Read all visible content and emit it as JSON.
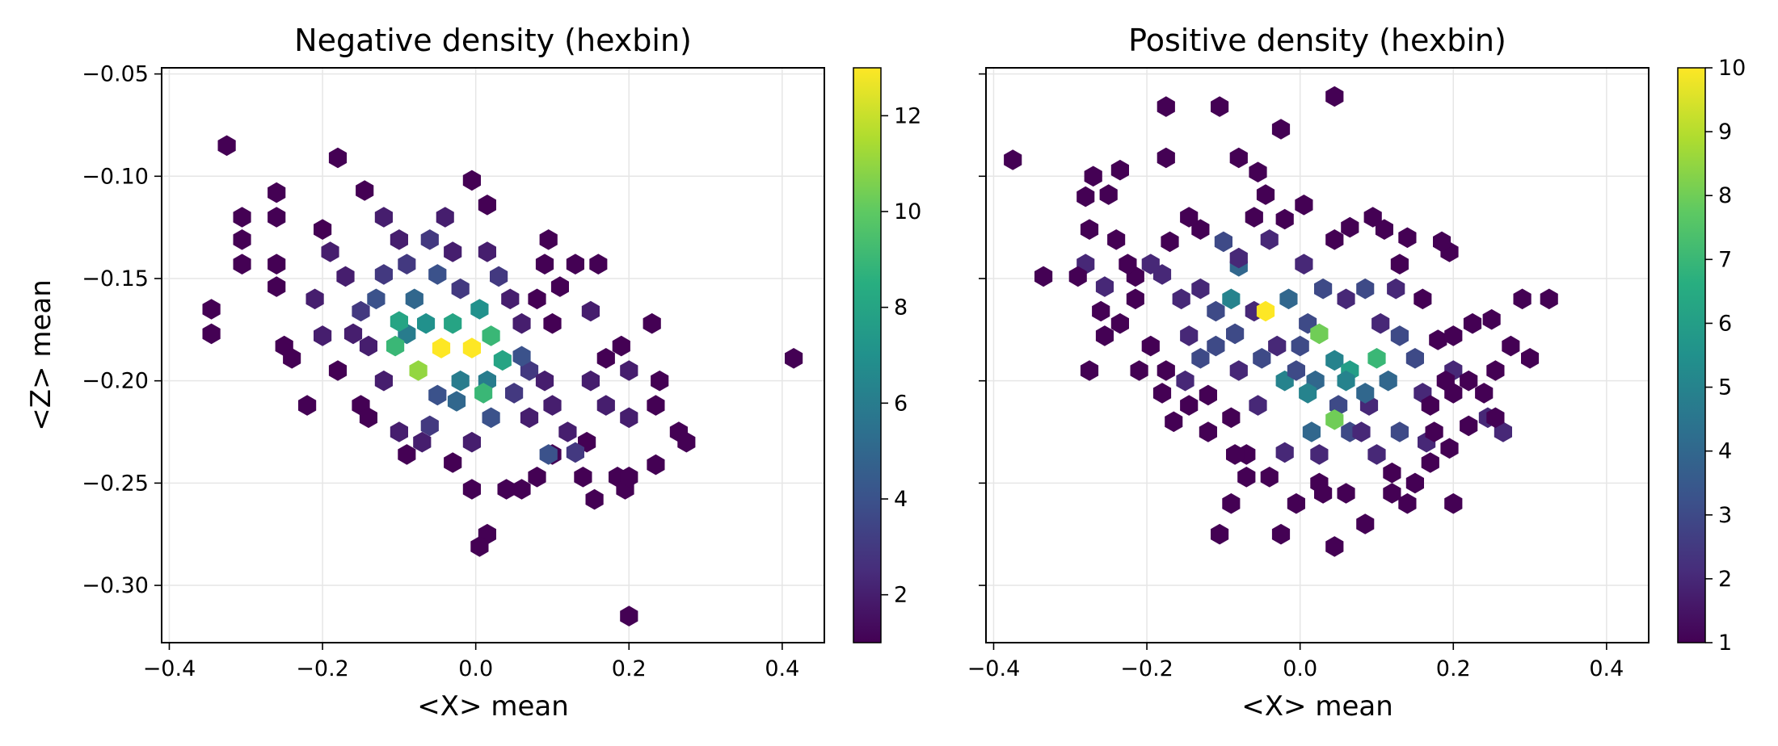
{
  "chart_data": [
    {
      "type": "heatmap",
      "subtype": "hexbin",
      "title": "Negative density (hexbin)",
      "xlabel": "<X> mean",
      "ylabel": "<Z> mean",
      "xlim": [
        -0.41,
        0.455
      ],
      "ylim": [
        -0.328,
        -0.047
      ],
      "xticks": [
        -0.4,
        -0.2,
        0.0,
        0.2,
        0.4
      ],
      "xtick_labels": [
        "−0.4",
        "−0.2",
        "0.0",
        "0.2",
        "0.4"
      ],
      "yticks": [
        -0.3,
        -0.25,
        -0.2,
        -0.15,
        -0.1,
        -0.05
      ],
      "ytick_labels": [
        "−0.30",
        "−0.25",
        "−0.20",
        "−0.15",
        "−0.10",
        "−0.05"
      ],
      "grid": true,
      "colormap": "viridis",
      "colorbar": {
        "min": 1,
        "max": 13,
        "ticks": [
          2,
          4,
          6,
          8,
          10,
          12
        ],
        "tick_labels": [
          "2",
          "4",
          "6",
          "8",
          "10",
          "12"
        ]
      },
      "bins": [
        [
          -0.325,
          -0.085,
          1
        ],
        [
          -0.18,
          -0.091,
          1
        ],
        [
          -0.305,
          -0.12,
          1
        ],
        [
          -0.305,
          -0.131,
          1
        ],
        [
          -0.305,
          -0.143,
          1
        ],
        [
          -0.345,
          -0.165,
          1
        ],
        [
          -0.345,
          -0.177,
          1
        ],
        [
          -0.26,
          -0.108,
          1
        ],
        [
          -0.26,
          -0.12,
          1
        ],
        [
          -0.26,
          -0.143,
          1
        ],
        [
          -0.26,
          -0.154,
          1
        ],
        [
          -0.25,
          -0.183,
          1
        ],
        [
          -0.24,
          -0.189,
          1
        ],
        [
          -0.22,
          -0.212,
          1
        ],
        [
          -0.2,
          -0.126,
          1
        ],
        [
          -0.19,
          -0.137,
          2
        ],
        [
          -0.17,
          -0.149,
          2
        ],
        [
          -0.21,
          -0.16,
          2
        ],
        [
          -0.15,
          -0.166,
          3
        ],
        [
          -0.16,
          -0.177,
          2
        ],
        [
          -0.14,
          -0.183,
          2
        ],
        [
          -0.145,
          -0.107,
          1
        ],
        [
          -0.12,
          -0.12,
          2
        ],
        [
          -0.1,
          -0.131,
          2
        ],
        [
          -0.09,
          -0.143,
          3
        ],
        [
          -0.08,
          -0.16,
          5
        ],
        [
          -0.065,
          -0.172,
          7
        ],
        [
          -0.09,
          -0.177,
          6
        ],
        [
          -0.1,
          -0.171,
          8
        ],
        [
          -0.105,
          -0.183,
          9
        ],
        [
          -0.075,
          -0.195,
          11
        ],
        [
          -0.045,
          -0.184,
          13
        ],
        [
          -0.005,
          -0.184,
          13
        ],
        [
          -0.03,
          -0.172,
          8
        ],
        [
          0.005,
          -0.165,
          7
        ],
        [
          0.02,
          -0.178,
          9
        ],
        [
          0.035,
          -0.19,
          8
        ],
        [
          0.015,
          -0.2,
          6
        ],
        [
          0.01,
          -0.206,
          9
        ],
        [
          -0.02,
          -0.2,
          6
        ],
        [
          -0.05,
          -0.207,
          4
        ],
        [
          -0.06,
          -0.222,
          3
        ],
        [
          -0.12,
          -0.2,
          2
        ],
        [
          -0.15,
          -0.212,
          1
        ],
        [
          -0.14,
          -0.218,
          1
        ],
        [
          -0.1,
          -0.225,
          2
        ],
        [
          -0.09,
          -0.236,
          1
        ],
        [
          -0.07,
          -0.23,
          2
        ],
        [
          -0.03,
          -0.24,
          1
        ],
        [
          -0.005,
          -0.23,
          2
        ],
        [
          0.02,
          -0.218,
          4
        ],
        [
          0.05,
          -0.206,
          3
        ],
        [
          0.07,
          -0.195,
          3
        ],
        [
          0.09,
          -0.2,
          2
        ],
        [
          0.1,
          -0.212,
          2
        ],
        [
          0.12,
          -0.225,
          2
        ],
        [
          0.145,
          -0.23,
          1
        ],
        [
          0.13,
          -0.235,
          3
        ],
        [
          0.1,
          -0.236,
          1
        ],
        [
          0.07,
          -0.218,
          2
        ],
        [
          0.045,
          -0.16,
          2
        ],
        [
          0.06,
          -0.172,
          2
        ],
        [
          0.08,
          -0.16,
          1
        ],
        [
          0.1,
          -0.172,
          1
        ],
        [
          0.11,
          -0.154,
          1
        ],
        [
          0.09,
          -0.143,
          1
        ],
        [
          0.095,
          -0.131,
          1
        ],
        [
          0.015,
          -0.137,
          2
        ],
        [
          -0.005,
          -0.102,
          1
        ],
        [
          0.015,
          -0.114,
          1
        ],
        [
          -0.04,
          -0.12,
          2
        ],
        [
          -0.06,
          -0.131,
          3
        ],
        [
          -0.03,
          -0.137,
          2
        ],
        [
          0.03,
          -0.149,
          3
        ],
        [
          0.13,
          -0.143,
          1
        ],
        [
          0.16,
          -0.143,
          1
        ],
        [
          0.15,
          -0.166,
          2
        ],
        [
          0.23,
          -0.172,
          1
        ],
        [
          0.19,
          -0.183,
          1
        ],
        [
          0.2,
          -0.195,
          2
        ],
        [
          0.17,
          -0.189,
          1
        ],
        [
          0.24,
          -0.2,
          1
        ],
        [
          0.235,
          -0.212,
          1
        ],
        [
          0.17,
          -0.212,
          2
        ],
        [
          0.2,
          -0.218,
          2
        ],
        [
          0.15,
          -0.2,
          2
        ],
        [
          0.265,
          -0.225,
          1
        ],
        [
          0.275,
          -0.23,
          1
        ],
        [
          0.235,
          -0.241,
          1
        ],
        [
          0.14,
          -0.247,
          1
        ],
        [
          0.155,
          -0.258,
          1
        ],
        [
          0.185,
          -0.247,
          1
        ],
        [
          0.195,
          -0.253,
          1
        ],
        [
          0.2,
          -0.247,
          1
        ],
        [
          0.095,
          -0.236,
          4
        ],
        [
          0.08,
          -0.247,
          1
        ],
        [
          0.04,
          -0.253,
          1
        ],
        [
          0.06,
          -0.253,
          1
        ],
        [
          -0.005,
          -0.253,
          1
        ],
        [
          0.015,
          -0.275,
          1
        ],
        [
          0.005,
          -0.281,
          1
        ],
        [
          0.2,
          -0.315,
          1
        ],
        [
          0.415,
          -0.189,
          1
        ],
        [
          -0.2,
          -0.178,
          2
        ],
        [
          -0.18,
          -0.195,
          1
        ],
        [
          -0.12,
          -0.148,
          3
        ],
        [
          -0.13,
          -0.16,
          4
        ],
        [
          -0.05,
          -0.148,
          4
        ],
        [
          -0.02,
          -0.155,
          3
        ],
        [
          0.06,
          -0.188,
          4
        ],
        [
          -0.025,
          -0.21,
          5
        ]
      ]
    },
    {
      "type": "heatmap",
      "subtype": "hexbin",
      "title": "Positive density (hexbin)",
      "xlabel": "<X> mean",
      "ylabel": "",
      "xlim": [
        -0.41,
        0.455
      ],
      "ylim": [
        -0.328,
        -0.047
      ],
      "xticks": [
        -0.4,
        -0.2,
        0.0,
        0.2,
        0.4
      ],
      "xtick_labels": [
        "−0.4",
        "−0.2",
        "0.0",
        "0.2",
        "0.4"
      ],
      "yticks": [
        -0.3,
        -0.25,
        -0.2,
        -0.15,
        -0.1,
        -0.05
      ],
      "grid": true,
      "colormap": "viridis",
      "colorbar": {
        "min": 1,
        "max": 10,
        "ticks": [
          1,
          2,
          3,
          4,
          5,
          6,
          7,
          8,
          9,
          10
        ],
        "tick_labels": [
          "1",
          "2",
          "3",
          "4",
          "5",
          "6",
          "7",
          "8",
          "9",
          "10"
        ]
      },
      "bins": [
        [
          -0.375,
          -0.092,
          1
        ],
        [
          -0.335,
          -0.149,
          1
        ],
        [
          -0.27,
          -0.1,
          1
        ],
        [
          -0.28,
          -0.11,
          1
        ],
        [
          -0.235,
          -0.097,
          1
        ],
        [
          -0.175,
          -0.066,
          1
        ],
        [
          -0.105,
          -0.066,
          1
        ],
        [
          0.045,
          -0.061,
          1
        ],
        [
          -0.025,
          -0.077,
          1
        ],
        [
          -0.175,
          -0.091,
          1
        ],
        [
          -0.08,
          -0.091,
          1
        ],
        [
          -0.055,
          -0.098,
          1
        ],
        [
          -0.045,
          -0.109,
          1
        ],
        [
          -0.25,
          -0.109,
          1
        ],
        [
          -0.275,
          -0.126,
          1
        ],
        [
          -0.28,
          -0.143,
          2
        ],
        [
          -0.29,
          -0.149,
          1
        ],
        [
          -0.255,
          -0.154,
          2
        ],
        [
          -0.26,
          -0.166,
          1
        ],
        [
          -0.255,
          -0.178,
          1
        ],
        [
          -0.235,
          -0.172,
          1
        ],
        [
          -0.215,
          -0.16,
          1
        ],
        [
          -0.18,
          -0.148,
          2
        ],
        [
          -0.155,
          -0.16,
          2
        ],
        [
          -0.13,
          -0.155,
          2
        ],
        [
          -0.09,
          -0.16,
          5
        ],
        [
          -0.08,
          -0.144,
          4
        ],
        [
          -0.1,
          -0.132,
          3
        ],
        [
          -0.06,
          -0.166,
          2
        ],
        [
          -0.045,
          -0.166,
          10
        ],
        [
          -0.015,
          -0.16,
          4
        ],
        [
          0.01,
          -0.172,
          3
        ],
        [
          0.0,
          -0.183,
          3
        ],
        [
          0.025,
          -0.177,
          8
        ],
        [
          0.045,
          -0.19,
          5
        ],
        [
          0.065,
          -0.195,
          6
        ],
        [
          0.1,
          -0.189,
          7
        ],
        [
          0.06,
          -0.2,
          5
        ],
        [
          0.02,
          -0.2,
          4
        ],
        [
          -0.02,
          -0.2,
          5
        ],
        [
          0.01,
          -0.206,
          5
        ],
        [
          0.05,
          -0.212,
          3
        ],
        [
          0.045,
          -0.219,
          8
        ],
        [
          0.015,
          -0.225,
          4
        ],
        [
          0.065,
          -0.225,
          3
        ],
        [
          0.09,
          -0.212,
          2
        ],
        [
          0.13,
          -0.225,
          3
        ],
        [
          0.165,
          -0.23,
          2
        ],
        [
          0.17,
          -0.24,
          1
        ],
        [
          0.15,
          -0.25,
          1
        ],
        [
          0.12,
          -0.245,
          1
        ],
        [
          0.1,
          -0.236,
          2
        ],
        [
          0.08,
          -0.225,
          2
        ],
        [
          0.025,
          -0.236,
          2
        ],
        [
          -0.02,
          -0.235,
          2
        ],
        [
          -0.04,
          -0.247,
          1
        ],
        [
          -0.07,
          -0.236,
          1
        ],
        [
          -0.09,
          -0.218,
          1
        ],
        [
          -0.12,
          -0.207,
          1
        ],
        [
          -0.145,
          -0.212,
          1
        ],
        [
          -0.15,
          -0.2,
          2
        ],
        [
          -0.175,
          -0.195,
          1
        ],
        [
          -0.13,
          -0.189,
          3
        ],
        [
          -0.11,
          -0.183,
          3
        ],
        [
          -0.085,
          -0.177,
          3
        ],
        [
          -0.08,
          -0.195,
          2
        ],
        [
          -0.05,
          -0.189,
          3
        ],
        [
          -0.03,
          -0.183,
          2
        ],
        [
          -0.11,
          -0.166,
          3
        ],
        [
          -0.145,
          -0.178,
          2
        ],
        [
          -0.21,
          -0.195,
          1
        ],
        [
          -0.18,
          -0.206,
          1
        ],
        [
          -0.275,
          -0.195,
          1
        ],
        [
          -0.165,
          -0.22,
          1
        ],
        [
          -0.12,
          -0.225,
          1
        ],
        [
          -0.085,
          -0.236,
          1
        ],
        [
          0.025,
          -0.25,
          1
        ],
        [
          0.06,
          -0.255,
          1
        ],
        [
          0.085,
          -0.27,
          1
        ],
        [
          0.045,
          -0.281,
          1
        ],
        [
          -0.025,
          -0.275,
          1
        ],
        [
          -0.105,
          -0.275,
          1
        ],
        [
          -0.07,
          -0.247,
          1
        ],
        [
          -0.09,
          -0.26,
          1
        ],
        [
          -0.005,
          -0.26,
          1
        ],
        [
          0.03,
          -0.255,
          1
        ],
        [
          0.2,
          -0.26,
          1
        ],
        [
          0.12,
          -0.255,
          1
        ],
        [
          0.14,
          -0.26,
          1
        ],
        [
          0.175,
          -0.225,
          1
        ],
        [
          0.195,
          -0.233,
          1
        ],
        [
          0.22,
          -0.222,
          1
        ],
        [
          0.245,
          -0.218,
          2
        ],
        [
          0.265,
          -0.225,
          2
        ],
        [
          0.255,
          -0.218,
          1
        ],
        [
          0.29,
          -0.16,
          1
        ],
        [
          0.325,
          -0.16,
          1
        ],
        [
          0.3,
          -0.189,
          1
        ],
        [
          0.275,
          -0.183,
          1
        ],
        [
          0.255,
          -0.195,
          1
        ],
        [
          0.2,
          -0.195,
          2
        ],
        [
          0.19,
          -0.2,
          1
        ],
        [
          0.2,
          -0.206,
          1
        ],
        [
          0.22,
          -0.2,
          1
        ],
        [
          0.24,
          -0.206,
          1
        ],
        [
          0.16,
          -0.206,
          2
        ],
        [
          0.18,
          -0.18,
          1
        ],
        [
          0.2,
          -0.178,
          1
        ],
        [
          0.225,
          -0.172,
          1
        ],
        [
          0.25,
          -0.17,
          1
        ],
        [
          0.195,
          -0.137,
          1
        ],
        [
          0.185,
          -0.132,
          1
        ],
        [
          0.14,
          -0.13,
          1
        ],
        [
          0.13,
          -0.143,
          1
        ],
        [
          0.11,
          -0.126,
          1
        ],
        [
          0.095,
          -0.12,
          1
        ],
        [
          0.065,
          -0.125,
          1
        ],
        [
          0.045,
          -0.131,
          1
        ],
        [
          0.005,
          -0.114,
          1
        ],
        [
          -0.02,
          -0.121,
          1
        ],
        [
          -0.04,
          -0.131,
          2
        ],
        [
          -0.06,
          -0.12,
          1
        ],
        [
          -0.08,
          -0.14,
          2
        ],
        [
          -0.13,
          -0.126,
          1
        ],
        [
          -0.145,
          -0.12,
          1
        ],
        [
          -0.17,
          -0.132,
          1
        ],
        [
          -0.195,
          -0.143,
          2
        ],
        [
          -0.215,
          -0.149,
          1
        ],
        [
          -0.225,
          -0.143,
          1
        ],
        [
          -0.24,
          -0.131,
          1
        ],
        [
          0.005,
          -0.143,
          2
        ],
        [
          0.03,
          -0.155,
          3
        ],
        [
          0.06,
          -0.16,
          2
        ],
        [
          0.085,
          -0.155,
          3
        ],
        [
          0.105,
          -0.172,
          2
        ],
        [
          0.13,
          -0.178,
          3
        ],
        [
          0.15,
          -0.189,
          3
        ],
        [
          0.125,
          -0.155,
          2
        ],
        [
          0.16,
          -0.16,
          1
        ],
        [
          -0.005,
          -0.195,
          3
        ],
        [
          0.085,
          -0.206,
          4
        ],
        [
          0.115,
          -0.2,
          4
        ],
        [
          -0.055,
          -0.212,
          2
        ],
        [
          0.17,
          -0.212,
          1
        ],
        [
          -0.195,
          -0.183,
          1
        ]
      ]
    }
  ]
}
